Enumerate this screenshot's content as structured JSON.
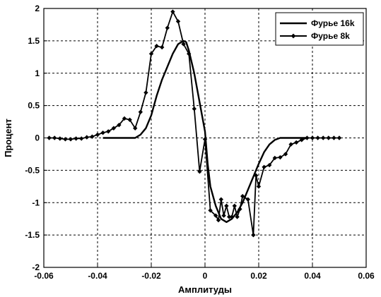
{
  "chart_data": {
    "type": "line",
    "title": "",
    "xlabel": "Амплитуды",
    "ylabel": "Процент",
    "xlim": [
      -0.06,
      0.06
    ],
    "ylim": [
      -2,
      2
    ],
    "grid": true,
    "legend_position": "top-right",
    "x_ticks": [
      -0.06,
      -0.04,
      -0.02,
      0,
      0.02,
      0.04,
      0.06
    ],
    "x_tick_labels": [
      "-0.06",
      "-0.04",
      "-0.02",
      "0",
      "0.02",
      "0.04",
      "0.06"
    ],
    "y_ticks": [
      -2,
      -1.5,
      -1,
      -0.5,
      0,
      0.5,
      1,
      1.5,
      2
    ],
    "y_tick_labels": [
      "-2",
      "-1.5",
      "-1",
      "-0.5",
      "0",
      "0.5",
      "1",
      "1.5",
      "2"
    ],
    "series": [
      {
        "name": "Фурье 16k",
        "marker": "none",
        "color": "#000000",
        "x": [
          -0.038,
          -0.032,
          -0.026,
          -0.024,
          -0.022,
          -0.02,
          -0.018,
          -0.016,
          -0.014,
          -0.012,
          -0.01,
          -0.008,
          -0.007,
          -0.006,
          -0.004,
          -0.002,
          0,
          0.001,
          0.002,
          0.004,
          0.006,
          0.008,
          0.01,
          0.012,
          0.014,
          0.016,
          0.018,
          0.02,
          0.022,
          0.024,
          0.026,
          0.028,
          0.03,
          0.032,
          0.034,
          0.036,
          0.038
        ],
        "y": [
          0.0,
          0.0,
          0.0,
          0.05,
          0.15,
          0.35,
          0.65,
          0.9,
          1.1,
          1.3,
          1.45,
          1.5,
          1.48,
          1.35,
          1.0,
          0.55,
          0.1,
          -0.4,
          -0.75,
          -1.05,
          -1.25,
          -1.3,
          -1.25,
          -1.15,
          -1.0,
          -0.8,
          -0.6,
          -0.4,
          -0.22,
          -0.1,
          -0.03,
          0.0,
          0.0,
          0.0,
          0.0,
          0.0,
          0.0
        ]
      },
      {
        "name": "Фурье 8k",
        "marker": "diamond",
        "color": "#000000",
        "x": [
          -0.058,
          -0.056,
          -0.054,
          -0.052,
          -0.05,
          -0.048,
          -0.046,
          -0.044,
          -0.042,
          -0.04,
          -0.038,
          -0.036,
          -0.034,
          -0.032,
          -0.03,
          -0.028,
          -0.026,
          -0.024,
          -0.022,
          -0.02,
          -0.018,
          -0.016,
          -0.014,
          -0.012,
          -0.01,
          -0.008,
          -0.006,
          -0.004,
          -0.002,
          0.0,
          0.002,
          0.004,
          0.005,
          0.006,
          0.007,
          0.008,
          0.009,
          0.01,
          0.011,
          0.012,
          0.013,
          0.014,
          0.016,
          0.018,
          0.019,
          0.02,
          0.022,
          0.024,
          0.026,
          0.028,
          0.03,
          0.032,
          0.034,
          0.036,
          0.038,
          0.04,
          0.042,
          0.044,
          0.046,
          0.048,
          0.05
        ],
        "y": [
          0.0,
          0.0,
          -0.01,
          -0.02,
          -0.02,
          -0.01,
          -0.01,
          0.01,
          0.02,
          0.05,
          0.08,
          0.1,
          0.15,
          0.2,
          0.3,
          0.28,
          0.15,
          0.4,
          0.7,
          1.3,
          1.42,
          1.4,
          1.7,
          1.95,
          1.8,
          1.45,
          1.3,
          0.45,
          -0.52,
          -0.02,
          -1.12,
          -1.2,
          -1.27,
          -0.95,
          -1.2,
          -1.05,
          -1.22,
          -1.22,
          -1.05,
          -1.22,
          -1.1,
          -0.9,
          -0.95,
          -1.5,
          -0.58,
          -0.75,
          -0.45,
          -0.42,
          -0.31,
          -0.3,
          -0.25,
          -0.1,
          -0.07,
          -0.03,
          0.0,
          0.0,
          0.0,
          0.0,
          0.0,
          0.0,
          0.0
        ]
      }
    ]
  }
}
